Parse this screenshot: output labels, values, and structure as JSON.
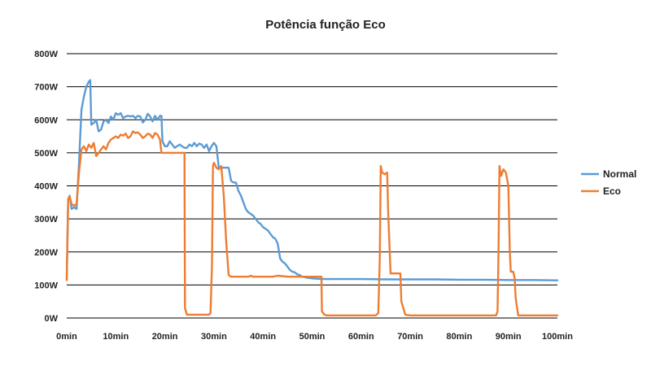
{
  "chart_data": {
    "type": "line",
    "title": "Potência função Eco",
    "xlabel": "",
    "ylabel": "",
    "xlim": [
      0,
      100
    ],
    "ylim": [
      0,
      800
    ],
    "x_ticks": [
      0,
      10,
      20,
      30,
      40,
      50,
      60,
      70,
      80,
      90,
      100
    ],
    "x_tick_labels": [
      "0min",
      "10min",
      "20min",
      "30min",
      "40min",
      "50min",
      "60min",
      "70min",
      "80min",
      "90min",
      "100min"
    ],
    "y_ticks": [
      0,
      100,
      200,
      300,
      400,
      500,
      600,
      700,
      800
    ],
    "y_tick_labels": [
      "0W",
      "100W",
      "200W",
      "300W",
      "400W",
      "500W",
      "600W",
      "700W",
      "800W"
    ],
    "grid": "horizontal",
    "legend_position": "right",
    "series": [
      {
        "name": "Normal",
        "color": "#5B9BD5",
        "points": [
          [
            0,
            115
          ],
          [
            0.3,
            360
          ],
          [
            0.6,
            370
          ],
          [
            1,
            330
          ],
          [
            1.5,
            335
          ],
          [
            2,
            330
          ],
          [
            2.5,
            470
          ],
          [
            3,
            630
          ],
          [
            3.5,
            670
          ],
          [
            4,
            700
          ],
          [
            4.5,
            715
          ],
          [
            4.8,
            720
          ],
          [
            5,
            585
          ],
          [
            5.5,
            590
          ],
          [
            6,
            600
          ],
          [
            6.5,
            565
          ],
          [
            7,
            570
          ],
          [
            7.5,
            595
          ],
          [
            8,
            600
          ],
          [
            8.5,
            590
          ],
          [
            9,
            610
          ],
          [
            9.5,
            600
          ],
          [
            10,
            620
          ],
          [
            10.5,
            615
          ],
          [
            11,
            620
          ],
          [
            11.5,
            605
          ],
          [
            12,
            610
          ],
          [
            12.5,
            612
          ],
          [
            13,
            610
          ],
          [
            13.5,
            612
          ],
          [
            14,
            605
          ],
          [
            14.5,
            612
          ],
          [
            15,
            610
          ],
          [
            15.5,
            592
          ],
          [
            16,
            600
          ],
          [
            16.5,
            618
          ],
          [
            17,
            610
          ],
          [
            17.5,
            595
          ],
          [
            18,
            612
          ],
          [
            18.5,
            600
          ],
          [
            19,
            612
          ],
          [
            19.3,
            612
          ],
          [
            19.5,
            535
          ],
          [
            20,
            520
          ],
          [
            20.5,
            520
          ],
          [
            21,
            535
          ],
          [
            21.5,
            525
          ],
          [
            22,
            515
          ],
          [
            22.5,
            520
          ],
          [
            23,
            525
          ],
          [
            23.5,
            520
          ],
          [
            24,
            515
          ],
          [
            24.5,
            515
          ],
          [
            25,
            525
          ],
          [
            25.5,
            520
          ],
          [
            26,
            530
          ],
          [
            26.5,
            520
          ],
          [
            27,
            528
          ],
          [
            27.5,
            525
          ],
          [
            28,
            515
          ],
          [
            28.5,
            525
          ],
          [
            29,
            505
          ],
          [
            29.5,
            520
          ],
          [
            30,
            530
          ],
          [
            30.5,
            520
          ],
          [
            31,
            455
          ],
          [
            32,
            455
          ],
          [
            33,
            455
          ],
          [
            33.5,
            415
          ],
          [
            34,
            410
          ],
          [
            34.5,
            410
          ],
          [
            35,
            385
          ],
          [
            35.5,
            370
          ],
          [
            36,
            350
          ],
          [
            36.5,
            330
          ],
          [
            37,
            320
          ],
          [
            37.5,
            315
          ],
          [
            38,
            310
          ],
          [
            38.5,
            300
          ],
          [
            39,
            290
          ],
          [
            39.5,
            285
          ],
          [
            40,
            275
          ],
          [
            40.5,
            270
          ],
          [
            41,
            265
          ],
          [
            41.5,
            255
          ],
          [
            42,
            245
          ],
          [
            42.5,
            240
          ],
          [
            43,
            225
          ],
          [
            43.5,
            180
          ],
          [
            44,
            170
          ],
          [
            44.5,
            165
          ],
          [
            45,
            155
          ],
          [
            45.5,
            145
          ],
          [
            46,
            140
          ],
          [
            46.5,
            138
          ],
          [
            47,
            132
          ],
          [
            47.5,
            130
          ],
          [
            48,
            125
          ],
          [
            49,
            122
          ],
          [
            50,
            120
          ],
          [
            52,
            118
          ],
          [
            55,
            118
          ],
          [
            60,
            118
          ],
          [
            65,
            117
          ],
          [
            70,
            117
          ],
          [
            75,
            117
          ],
          [
            80,
            116
          ],
          [
            85,
            116
          ],
          [
            90,
            115
          ],
          [
            95,
            115
          ],
          [
            100,
            114
          ]
        ]
      },
      {
        "name": "Eco",
        "color": "#ED7D31",
        "points": [
          [
            0,
            115
          ],
          [
            0.3,
            360
          ],
          [
            0.6,
            368
          ],
          [
            1,
            345
          ],
          [
            1.5,
            340
          ],
          [
            2,
            345
          ],
          [
            2.5,
            440
          ],
          [
            3,
            510
          ],
          [
            3.5,
            520
          ],
          [
            4,
            505
          ],
          [
            4.5,
            525
          ],
          [
            5,
            515
          ],
          [
            5.5,
            530
          ],
          [
            6,
            490
          ],
          [
            6.5,
            500
          ],
          [
            7,
            510
          ],
          [
            7.5,
            520
          ],
          [
            8,
            510
          ],
          [
            8.5,
            530
          ],
          [
            9,
            540
          ],
          [
            9.5,
            545
          ],
          [
            10,
            550
          ],
          [
            10.5,
            545
          ],
          [
            11,
            555
          ],
          [
            11.5,
            552
          ],
          [
            12,
            558
          ],
          [
            12.5,
            545
          ],
          [
            13,
            550
          ],
          [
            13.5,
            565
          ],
          [
            14,
            560
          ],
          [
            14.5,
            562
          ],
          [
            15,
            555
          ],
          [
            15.5,
            545
          ],
          [
            16,
            550
          ],
          [
            16.5,
            558
          ],
          [
            17,
            555
          ],
          [
            17.5,
            545
          ],
          [
            18,
            560
          ],
          [
            18.5,
            555
          ],
          [
            19,
            540
          ],
          [
            19.3,
            500
          ],
          [
            20,
            500
          ],
          [
            21,
            500
          ],
          [
            22,
            500
          ],
          [
            23,
            500
          ],
          [
            24,
            500
          ],
          [
            24.1,
            30
          ],
          [
            24.5,
            10
          ],
          [
            25,
            10
          ],
          [
            26,
            10
          ],
          [
            27,
            10
          ],
          [
            28,
            10
          ],
          [
            29,
            10
          ],
          [
            29.3,
            15
          ],
          [
            29.6,
            160
          ],
          [
            29.8,
            460
          ],
          [
            30,
            470
          ],
          [
            30.5,
            455
          ],
          [
            31,
            450
          ],
          [
            31.5,
            460
          ],
          [
            32,
            370
          ],
          [
            32.5,
            230
          ],
          [
            33,
            130
          ],
          [
            33.5,
            125
          ],
          [
            34,
            125
          ],
          [
            36,
            125
          ],
          [
            37,
            125
          ],
          [
            37.5,
            128
          ],
          [
            38,
            125
          ],
          [
            40,
            125
          ],
          [
            42,
            125
          ],
          [
            43,
            128
          ],
          [
            45,
            125
          ],
          [
            48,
            125
          ],
          [
            50,
            125
          ],
          [
            51.9,
            125
          ],
          [
            52,
            20
          ],
          [
            52.5,
            10
          ],
          [
            53,
            8
          ],
          [
            55,
            8
          ],
          [
            58,
            8
          ],
          [
            63,
            8
          ],
          [
            63.5,
            15
          ],
          [
            63.8,
            180
          ],
          [
            64,
            460
          ],
          [
            64.3,
            440
          ],
          [
            64.8,
            435
          ],
          [
            65.3,
            440
          ],
          [
            65.5,
            320
          ],
          [
            66,
            135
          ],
          [
            67,
            135
          ],
          [
            68,
            135
          ],
          [
            68.2,
            50
          ],
          [
            69,
            10
          ],
          [
            70,
            8
          ],
          [
            75,
            8
          ],
          [
            80,
            8
          ],
          [
            85,
            8
          ],
          [
            87.5,
            8
          ],
          [
            87.8,
            20
          ],
          [
            88,
            200
          ],
          [
            88.2,
            460
          ],
          [
            88.5,
            430
          ],
          [
            89,
            450
          ],
          [
            89.5,
            440
          ],
          [
            90,
            400
          ],
          [
            90.3,
            200
          ],
          [
            90.5,
            140
          ],
          [
            91,
            140
          ],
          [
            91.3,
            120
          ],
          [
            91.5,
            60
          ],
          [
            92,
            8
          ],
          [
            95,
            8
          ],
          [
            100,
            8
          ]
        ]
      }
    ]
  }
}
